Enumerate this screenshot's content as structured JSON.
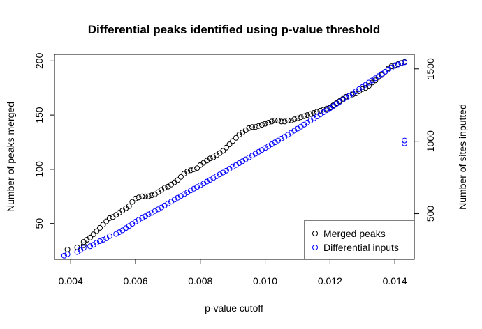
{
  "chart_data": {
    "type": "scatter",
    "title": "Differential peaks identified using p-value threshold",
    "xlabel": "p-value cutoff",
    "ylabel_left": "Number of peaks merged",
    "ylabel_right": "Number of sites inputted",
    "xlim": [
      0.0035,
      0.0146
    ],
    "ylim_left": [
      17,
      206
    ],
    "ylim_right": [
      185,
      1600
    ],
    "x_ticks": [
      {
        "value": 0.004,
        "label": "0.004"
      },
      {
        "value": 0.006,
        "label": "0.006"
      },
      {
        "value": 0.008,
        "label": "0.008"
      },
      {
        "value": 0.01,
        "label": "0.010"
      },
      {
        "value": 0.012,
        "label": "0.012"
      },
      {
        "value": 0.014,
        "label": "0.014"
      }
    ],
    "y_left_ticks": [
      {
        "value": 50,
        "label": "50"
      },
      {
        "value": 100,
        "label": "100"
      },
      {
        "value": 150,
        "label": "150"
      },
      {
        "value": 200,
        "label": "200"
      }
    ],
    "y_right_ticks": [
      {
        "value": 500,
        "label": "500"
      },
      {
        "value": 1000,
        "label": "1000"
      },
      {
        "value": 1500,
        "label": "1500"
      }
    ],
    "legend_position": "bottom-right",
    "series": [
      {
        "name": "Merged peaks",
        "axis": "left",
        "color": "#000000",
        "marker": "open-circle",
        "points": [
          [
            0.0039,
            26
          ],
          [
            0.0042,
            28
          ],
          [
            0.0044,
            30
          ],
          [
            0.0044,
            33
          ],
          [
            0.0045,
            35
          ],
          [
            0.0046,
            37
          ],
          [
            0.0047,
            40
          ],
          [
            0.0048,
            43
          ],
          [
            0.0049,
            46
          ],
          [
            0.005,
            49
          ],
          [
            0.0051,
            52
          ],
          [
            0.0052,
            55
          ],
          [
            0.0053,
            56
          ],
          [
            0.0054,
            58
          ],
          [
            0.0055,
            60
          ],
          [
            0.0056,
            62
          ],
          [
            0.0057,
            64
          ],
          [
            0.0058,
            66
          ],
          [
            0.0059,
            70
          ],
          [
            0.006,
            73
          ],
          [
            0.0061,
            74
          ],
          [
            0.0062,
            75
          ],
          [
            0.0063,
            75
          ],
          [
            0.0064,
            75
          ],
          [
            0.0065,
            76
          ],
          [
            0.0066,
            77
          ],
          [
            0.0067,
            79
          ],
          [
            0.0068,
            81
          ],
          [
            0.0069,
            83
          ],
          [
            0.007,
            84
          ],
          [
            0.0071,
            86
          ],
          [
            0.0072,
            88
          ],
          [
            0.0073,
            90
          ],
          [
            0.0074,
            93
          ],
          [
            0.0075,
            96
          ],
          [
            0.0076,
            98
          ],
          [
            0.0077,
            99
          ],
          [
            0.0078,
            100
          ],
          [
            0.0079,
            101
          ],
          [
            0.008,
            104
          ],
          [
            0.0081,
            106
          ],
          [
            0.0082,
            108
          ],
          [
            0.0083,
            110
          ],
          [
            0.0084,
            111
          ],
          [
            0.0085,
            113
          ],
          [
            0.0086,
            115
          ],
          [
            0.0087,
            117
          ],
          [
            0.0088,
            120
          ],
          [
            0.0089,
            123
          ],
          [
            0.009,
            126
          ],
          [
            0.0091,
            129
          ],
          [
            0.0092,
            132
          ],
          [
            0.0093,
            134
          ],
          [
            0.0094,
            136
          ],
          [
            0.0095,
            138
          ],
          [
            0.0096,
            139
          ],
          [
            0.0097,
            139
          ],
          [
            0.0098,
            140
          ],
          [
            0.0099,
            141
          ],
          [
            0.01,
            142
          ],
          [
            0.0101,
            143
          ],
          [
            0.0102,
            144
          ],
          [
            0.0103,
            145
          ],
          [
            0.0104,
            145
          ],
          [
            0.0105,
            144
          ],
          [
            0.0106,
            144
          ],
          [
            0.0107,
            145
          ],
          [
            0.0108,
            145
          ],
          [
            0.0109,
            146
          ],
          [
            0.011,
            147
          ],
          [
            0.0111,
            148
          ],
          [
            0.0112,
            149
          ],
          [
            0.0113,
            150
          ],
          [
            0.0114,
            151
          ],
          [
            0.0115,
            152
          ],
          [
            0.0116,
            153
          ],
          [
            0.0117,
            154
          ],
          [
            0.0118,
            155
          ],
          [
            0.0119,
            156
          ],
          [
            0.012,
            157
          ],
          [
            0.0121,
            159
          ],
          [
            0.0122,
            161
          ],
          [
            0.0123,
            163
          ],
          [
            0.0124,
            165
          ],
          [
            0.0125,
            167
          ],
          [
            0.0126,
            168
          ],
          [
            0.0127,
            169
          ],
          [
            0.0128,
            170
          ],
          [
            0.0129,
            172
          ],
          [
            0.013,
            174
          ],
          [
            0.0131,
            175
          ],
          [
            0.0132,
            177
          ],
          [
            0.0133,
            180
          ],
          [
            0.0134,
            182
          ],
          [
            0.0135,
            185
          ],
          [
            0.0136,
            187
          ],
          [
            0.0137,
            190
          ],
          [
            0.0138,
            193
          ],
          [
            0.0139,
            195
          ],
          [
            0.014,
            196
          ],
          [
            0.0141,
            197
          ],
          [
            0.0142,
            198
          ],
          [
            0.0143,
            199
          ]
        ]
      },
      {
        "name": "Differential inputs",
        "axis": "right",
        "color": "#0000ff",
        "marker": "open-circle",
        "points": [
          [
            0.0038,
            210
          ],
          [
            0.0039,
            220
          ],
          [
            0.0042,
            235
          ],
          [
            0.0043,
            250
          ],
          [
            0.0044,
            265
          ],
          [
            0.0046,
            275
          ],
          [
            0.0047,
            285
          ],
          [
            0.0048,
            300
          ],
          [
            0.0049,
            310
          ],
          [
            0.005,
            320
          ],
          [
            0.0051,
            330
          ],
          [
            0.0052,
            345
          ],
          [
            0.0054,
            360
          ],
          [
            0.0055,
            372
          ],
          [
            0.0056,
            385
          ],
          [
            0.0057,
            400
          ],
          [
            0.0058,
            415
          ],
          [
            0.0059,
            430
          ],
          [
            0.006,
            445
          ],
          [
            0.0061,
            458
          ],
          [
            0.0062,
            470
          ],
          [
            0.0063,
            482
          ],
          [
            0.0064,
            495
          ],
          [
            0.0065,
            505
          ],
          [
            0.0066,
            518
          ],
          [
            0.0067,
            530
          ],
          [
            0.0068,
            543
          ],
          [
            0.0069,
            556
          ],
          [
            0.007,
            570
          ],
          [
            0.0071,
            583
          ],
          [
            0.0072,
            597
          ],
          [
            0.0073,
            610
          ],
          [
            0.0074,
            622
          ],
          [
            0.0075,
            635
          ],
          [
            0.0076,
            647
          ],
          [
            0.0077,
            660
          ],
          [
            0.0078,
            672
          ],
          [
            0.0079,
            684
          ],
          [
            0.008,
            696
          ],
          [
            0.0081,
            708
          ],
          [
            0.0082,
            721
          ],
          [
            0.0083,
            733
          ],
          [
            0.0084,
            746
          ],
          [
            0.0085,
            758
          ],
          [
            0.0086,
            771
          ],
          [
            0.0087,
            784
          ],
          [
            0.0088,
            797
          ],
          [
            0.0089,
            810
          ],
          [
            0.009,
            823
          ],
          [
            0.0091,
            836
          ],
          [
            0.0092,
            849
          ],
          [
            0.0093,
            862
          ],
          [
            0.0094,
            875
          ],
          [
            0.0095,
            888
          ],
          [
            0.0096,
            901
          ],
          [
            0.0097,
            914
          ],
          [
            0.0098,
            927
          ],
          [
            0.0099,
            940
          ],
          [
            0.01,
            953
          ],
          [
            0.0101,
            966
          ],
          [
            0.0102,
            979
          ],
          [
            0.0103,
            992
          ],
          [
            0.0104,
            1005
          ],
          [
            0.0105,
            1018
          ],
          [
            0.0106,
            1031
          ],
          [
            0.0107,
            1045
          ],
          [
            0.0108,
            1059
          ],
          [
            0.0109,
            1073
          ],
          [
            0.011,
            1087
          ],
          [
            0.0111,
            1101
          ],
          [
            0.0112,
            1115
          ],
          [
            0.0113,
            1129
          ],
          [
            0.0114,
            1143
          ],
          [
            0.0115,
            1157
          ],
          [
            0.0116,
            1171
          ],
          [
            0.0117,
            1185
          ],
          [
            0.0118,
            1200
          ],
          [
            0.0119,
            1214
          ],
          [
            0.012,
            1228
          ],
          [
            0.0121,
            1243
          ],
          [
            0.0122,
            1258
          ],
          [
            0.0123,
            1272
          ],
          [
            0.0124,
            1287
          ],
          [
            0.0125,
            1301
          ],
          [
            0.0126,
            1315
          ],
          [
            0.0127,
            1330
          ],
          [
            0.0128,
            1345
          ],
          [
            0.0129,
            1360
          ],
          [
            0.013,
            1375
          ],
          [
            0.0131,
            1390
          ],
          [
            0.0132,
            1405
          ],
          [
            0.0133,
            1420
          ],
          [
            0.0134,
            1435
          ],
          [
            0.0135,
            1450
          ],
          [
            0.0136,
            1465
          ],
          [
            0.0137,
            1480
          ],
          [
            0.0138,
            1495
          ],
          [
            0.0139,
            1508
          ],
          [
            0.014,
            1520
          ],
          [
            0.0141,
            1530
          ],
          [
            0.0142,
            1538
          ],
          [
            0.0143,
            1545
          ],
          [
            0.0143,
            985
          ],
          [
            0.0143,
            1005
          ]
        ]
      }
    ]
  }
}
